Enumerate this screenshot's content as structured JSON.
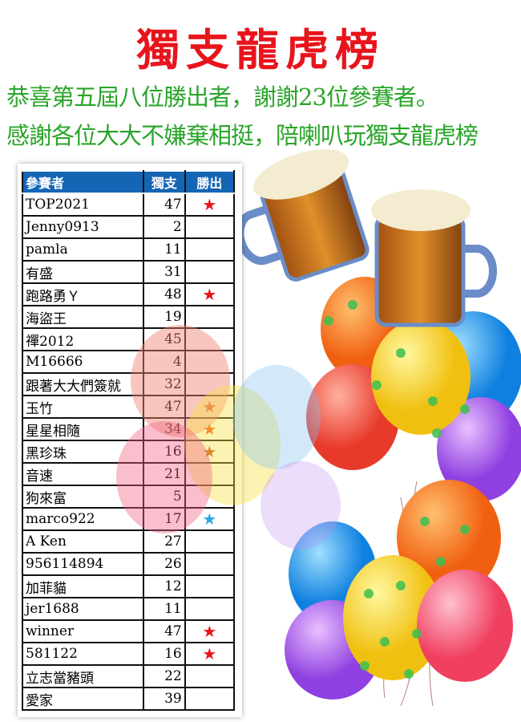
{
  "title": "獨支龍虎榜",
  "subtitle_lines": [
    "恭喜第五屆八位勝出者，謝謝23位參賽者。",
    "感謝各位大大不嫌棄相挺，陪喇叭玩獨支龍虎榜"
  ],
  "table": {
    "headers": [
      "參賽者",
      "獨支",
      "勝出"
    ],
    "rows": [
      {
        "name": "TOP2021",
        "count": "47",
        "star": "★",
        "star_color": "#e8141c"
      },
      {
        "name": "Jenny0913",
        "count": "2",
        "star": ""
      },
      {
        "name": "pamla",
        "count": "11",
        "star": ""
      },
      {
        "name": "有盛",
        "count": "31",
        "star": ""
      },
      {
        "name": "跑路勇Ｙ",
        "count": "48",
        "star": "★",
        "star_color": "#e8141c"
      },
      {
        "name": "海盜王",
        "count": "19",
        "star": ""
      },
      {
        "name": "禪2012",
        "count": "45",
        "star": ""
      },
      {
        "name": "M16666",
        "count": "4",
        "star": ""
      },
      {
        "name": "跟著大大們簽就",
        "count": "32",
        "star": ""
      },
      {
        "name": "玉竹",
        "count": "47",
        "star": "★",
        "star_color": "#d84a1c"
      },
      {
        "name": "星星相隨",
        "count": "34",
        "star": "★",
        "star_color": "#f0581c"
      },
      {
        "name": "黑珍珠",
        "count": "16",
        "star": "★",
        "star_color": "#c0501c"
      },
      {
        "name": "音速",
        "count": "21",
        "star": ""
      },
      {
        "name": "狗來富",
        "count": "5",
        "star": ""
      },
      {
        "name": "marco922",
        "count": "17",
        "star": "★",
        "star_color": "#2aa8e0"
      },
      {
        "name": "A Ken",
        "count": "27",
        "star": ""
      },
      {
        "name": "956114894",
        "count": "26",
        "star": ""
      },
      {
        "name": "加菲貓",
        "count": "12",
        "star": ""
      },
      {
        "name": "jer1688",
        "count": "11",
        "star": ""
      },
      {
        "name": "winner",
        "count": "47",
        "star": "★",
        "star_color": "#e8141c"
      },
      {
        "name": "581122",
        "count": "16",
        "star": "★",
        "star_color": "#e8141c"
      },
      {
        "name": "立志當豬頭",
        "count": "22",
        "star": ""
      },
      {
        "name": "愛家",
        "count": "39",
        "star": ""
      }
    ]
  },
  "colors": {
    "title": "#e8141c",
    "subtitle": "#2aa52a",
    "header_bg": "#1565b5"
  }
}
